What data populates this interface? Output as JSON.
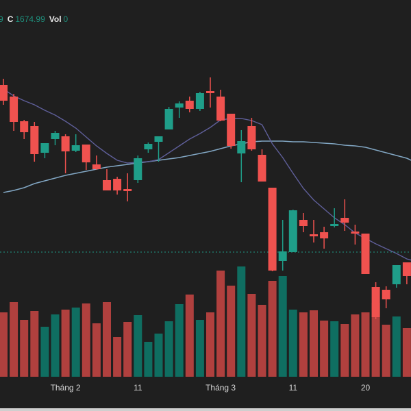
{
  "legend": {
    "partial_value": "9",
    "close_label": "C",
    "close_value": "1674.99",
    "vol_label": "Vol",
    "vol_value": "0"
  },
  "colors": {
    "background": "#1f1f1f",
    "up": "#1f9e89",
    "down": "#f0524f",
    "volume_up": "#0f6e61",
    "volume_down": "#b0403e",
    "ma_short": "#5f5f9a",
    "ma_long": "#8db6d6",
    "last_price_line": "#1f9e89",
    "axis_text": "#d8d8d8"
  },
  "chart_data": {
    "type": "candlestick",
    "last_price": 1674.99,
    "x_ticks": [
      {
        "index": 6,
        "label": "Tháng 2"
      },
      {
        "index": 13,
        "label": "11"
      },
      {
        "index": 21,
        "label": "Tháng 3"
      },
      {
        "index": 28,
        "label": "11"
      },
      {
        "index": 35,
        "label": "20"
      }
    ],
    "candles": [
      [
        2041,
        2054.5,
        1997.5,
        2006.5
      ],
      [
        2015.5,
        2021.5,
        1940.5,
        1960
      ],
      [
        1961.5,
        1964.5,
        1922.5,
        1937.5
      ],
      [
        1951,
        1960,
        1873,
        1889.5
      ],
      [
        1892.5,
        1913.5,
        1880.5,
        1913.5
      ],
      [
        1922.5,
        1940.5,
        1909,
        1936
      ],
      [
        1928.5,
        1933,
        1847.5,
        1895.5
      ],
      [
        1897,
        1933,
        1894,
        1909
      ],
      [
        1910.5,
        1910.5,
        1855,
        1871.5
      ],
      [
        1867,
        1886.5,
        1855,
        1856.5
      ],
      [
        1832.5,
        1856.5,
        1810,
        1810
      ],
      [
        1835.5,
        1840,
        1801,
        1810
      ],
      [
        1813,
        1847.5,
        1786,
        1808.5
      ],
      [
        1832.5,
        1886.5,
        1826.5,
        1880.5
      ],
      [
        1900,
        1915,
        1892.5,
        1912
      ],
      [
        1916.5,
        1928.5,
        1873,
        1928.5
      ],
      [
        1943.5,
        1993,
        1943.5,
        1988.5
      ],
      [
        1991.5,
        2005,
        1969,
        2000.5
      ],
      [
        2006.5,
        2015.5,
        1981,
        1988.5
      ],
      [
        1988.5,
        2026,
        1984,
        2023
      ],
      [
        2027.5,
        2057.5,
        1991.5,
        2023
      ],
      [
        2015.5,
        2030.5,
        1961.5,
        1963
      ],
      [
        1978,
        1978,
        1901.5,
        1907.5
      ],
      [
        1891,
        1942,
        1828,
        1918
      ],
      [
        1951,
        1969,
        1897,
        1900
      ],
      [
        1888,
        1900,
        1829.5,
        1829.5
      ],
      [
        1816,
        1816,
        1633,
        1634.5
      ],
      [
        1655.5,
        1745.5,
        1634.5,
        1676.5
      ],
      [
        1675,
        1768,
        1675,
        1766.5
      ],
      [
        1745.5,
        1760.5,
        1718.5,
        1732
      ],
      [
        1714,
        1745.5,
        1696,
        1709.5
      ],
      [
        1718.5,
        1730.5,
        1682.5,
        1705
      ],
      [
        1732,
        1771,
        1729,
        1736.5
      ],
      [
        1750,
        1790.5,
        1721.5,
        1739.5
      ],
      [
        1720,
        1735,
        1691.5,
        1715.5
      ],
      [
        1715.5,
        1715.5,
        1627,
        1627
      ],
      [
        1598.5,
        1609,
        1528,
        1532.5
      ],
      [
        1592.5,
        1600,
        1552,
        1571.5
      ],
      [
        1604.5,
        1646.5,
        1597,
        1646.5
      ],
      [
        1652.5,
        1652.5,
        1604.5,
        1622.5
      ],
      [
        1652.5,
        1680,
        1642,
        1674.99
      ]
    ],
    "volume": [
      94,
      109,
      83,
      96,
      73,
      91,
      98,
      101,
      107,
      78,
      109,
      58,
      80,
      90,
      51,
      63,
      81,
      106,
      120,
      83,
      94,
      155,
      133,
      161,
      121,
      105,
      140,
      147,
      98,
      94,
      97,
      82,
      81,
      77,
      91,
      94,
      108,
      76,
      88,
      71,
      88
    ],
    "volume_up": [
      false,
      false,
      false,
      false,
      true,
      true,
      false,
      true,
      false,
      false,
      false,
      false,
      false,
      true,
      true,
      true,
      true,
      true,
      false,
      true,
      false,
      false,
      false,
      true,
      false,
      false,
      false,
      true,
      true,
      false,
      false,
      false,
      true,
      false,
      false,
      false,
      false,
      false,
      true,
      false,
      true
    ],
    "ma_short": [
      2032,
      2017,
      2006.5,
      1997.5,
      1985.5,
      1975,
      1961.5,
      1946.5,
      1927,
      1907.5,
      1891,
      1876,
      1870,
      1871.5,
      1873,
      1877.5,
      1892.5,
      1907.5,
      1922.5,
      1934.5,
      1948,
      1964.5,
      1967.5,
      1967.5,
      1963,
      1954,
      1912,
      1882,
      1847.5,
      1814.5,
      1789,
      1769.5,
      1750,
      1735,
      1717,
      1705,
      1693,
      1682.5,
      1672,
      1660,
      1654
    ],
    "ma_long": [
      1805.5,
      1810,
      1816,
      1825,
      1831,
      1837,
      1843,
      1847.5,
      1852,
      1856.5,
      1861,
      1864,
      1867,
      1870,
      1873,
      1876,
      1879,
      1882,
      1886.5,
      1891,
      1895.5,
      1901.5,
      1907.5,
      1912,
      1916.5,
      1918,
      1918,
      1918,
      1916.5,
      1916.5,
      1915,
      1913.5,
      1912,
      1909,
      1907.5,
      1904.5,
      1898.5,
      1892.5,
      1886.5,
      1880.5,
      1870
    ]
  }
}
